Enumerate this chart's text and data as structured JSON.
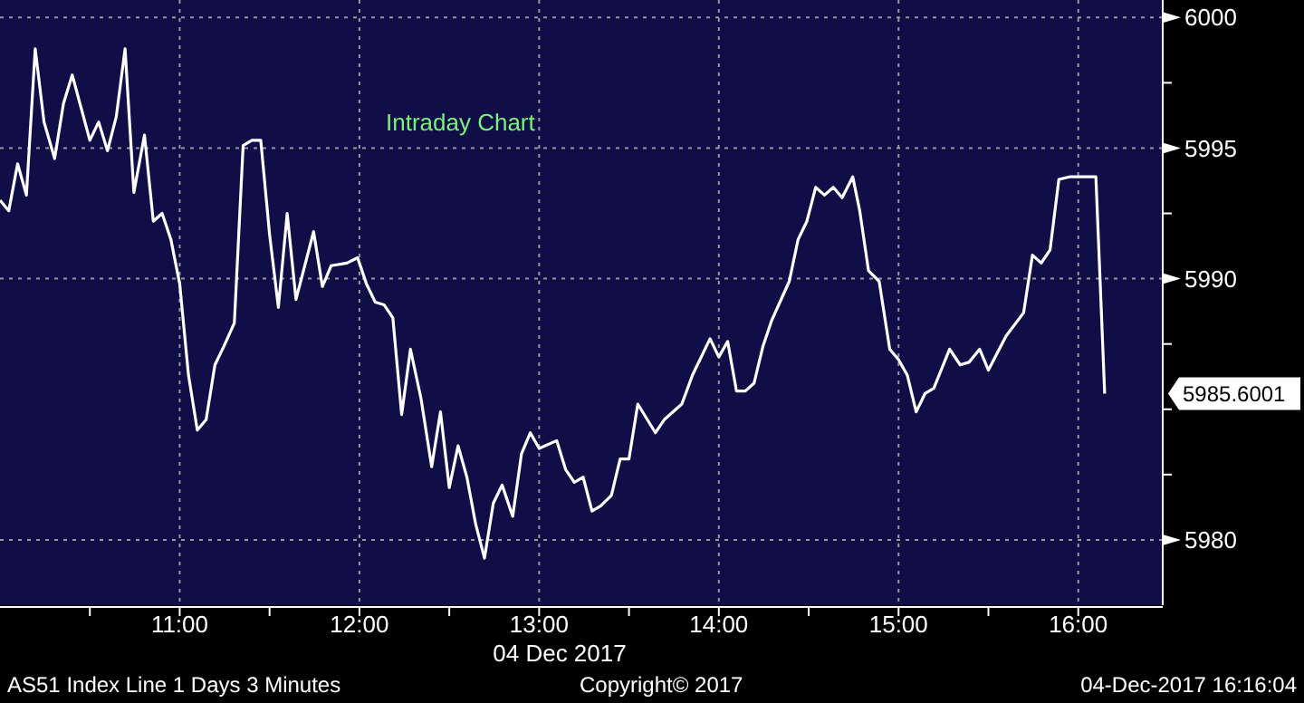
{
  "chart_data": {
    "type": "line",
    "title": "Intraday Chart",
    "xlabel": "04 Dec 2017",
    "x": [
      10.0,
      10.049,
      10.098,
      10.147,
      10.196,
      10.245,
      10.304,
      10.353,
      10.402,
      10.5,
      10.549,
      10.598,
      10.647,
      10.696,
      10.745,
      10.804,
      10.853,
      10.902,
      10.951,
      11.0,
      11.049,
      11.098,
      11.147,
      11.196,
      11.245,
      11.304,
      11.353,
      11.402,
      11.451,
      11.5,
      11.549,
      11.598,
      11.647,
      11.745,
      11.794,
      11.843,
      11.931,
      11.99,
      12.039,
      12.088,
      12.137,
      12.186,
      12.235,
      12.284,
      12.343,
      12.402,
      12.451,
      12.5,
      12.549,
      12.598,
      12.647,
      12.696,
      12.745,
      12.794,
      12.853,
      12.902,
      12.951,
      13.0,
      13.098,
      13.147,
      13.196,
      13.245,
      13.294,
      13.343,
      13.402,
      13.451,
      13.5,
      13.549,
      13.647,
      13.696,
      13.794,
      13.853,
      13.951,
      14.0,
      14.049,
      14.098,
      14.147,
      14.196,
      14.245,
      14.294,
      14.392,
      14.441,
      14.49,
      14.539,
      14.588,
      14.637,
      14.686,
      14.745,
      14.784,
      14.833,
      14.892,
      14.951,
      15.0,
      15.049,
      15.098,
      15.147,
      15.196,
      15.284,
      15.343,
      15.392,
      15.451,
      15.5,
      15.598,
      15.696,
      15.745,
      15.794,
      15.843,
      15.892,
      15.951,
      16.098,
      16.147
    ],
    "series": [
      {
        "color": "#ffffff",
        "values": [
          5993.0,
          5992.6,
          5994.4,
          5993.2,
          5998.8,
          5996.0,
          5994.6,
          5996.7,
          5997.8,
          5995.3,
          5996.0,
          5994.9,
          5996.2,
          5998.8,
          5993.3,
          5995.5,
          5992.2,
          5992.5,
          5991.5,
          5989.8,
          5986.3,
          5984.2,
          5984.6,
          5986.7,
          5987.4,
          5988.3,
          5995.1,
          5995.3,
          5995.3,
          5991.7,
          5988.9,
          5992.5,
          5989.2,
          5991.8,
          5989.7,
          5990.5,
          5990.6,
          5990.8,
          5989.8,
          5989.1,
          5989.0,
          5988.5,
          5984.8,
          5987.3,
          5985.4,
          5982.8,
          5984.9,
          5982.0,
          5983.6,
          5982.4,
          5980.6,
          5979.3,
          5981.4,
          5982.1,
          5980.9,
          5983.3,
          5984.1,
          5983.5,
          5983.8,
          5982.7,
          5982.2,
          5982.4,
          5981.1,
          5981.3,
          5981.7,
          5983.1,
          5983.1,
          5985.2,
          5984.1,
          5984.6,
          5985.2,
          5986.3,
          5987.7,
          5987.0,
          5987.6,
          5985.7,
          5985.7,
          5986.0,
          5987.4,
          5988.4,
          5989.9,
          5991.5,
          5992.2,
          5993.5,
          5993.2,
          5993.5,
          5993.1,
          5993.9,
          5992.6,
          5990.3,
          5989.9,
          5987.3,
          5986.9,
          5986.3,
          5984.9,
          5985.6,
          5985.8,
          5987.3,
          5986.7,
          5986.8,
          5987.3,
          5986.5,
          5987.8,
          5988.7,
          5990.9,
          5990.6,
          5991.1,
          5993.8,
          5993.9,
          5993.9,
          5985.6001
        ]
      }
    ],
    "xlim": [
      10.0,
      16.47
    ],
    "ylim": [
      5977.5,
      6000.67
    ],
    "xticks": [
      {
        "value": 10.5,
        "label": null
      },
      {
        "value": 11,
        "label": "11:00"
      },
      {
        "value": 11.5,
        "label": null
      },
      {
        "value": 12,
        "label": "12:00"
      },
      {
        "value": 12.5,
        "label": null
      },
      {
        "value": 13,
        "label": "13:00"
      },
      {
        "value": 13.5,
        "label": null
      },
      {
        "value": 14,
        "label": "14:00"
      },
      {
        "value": 14.5,
        "label": null
      },
      {
        "value": 15,
        "label": "15:00"
      },
      {
        "value": 15.5,
        "label": null
      },
      {
        "value": 16,
        "label": "16:00"
      }
    ],
    "yticks": [
      5980,
      {
        "value": 5982.5,
        "label": null
      },
      {
        "value": 5985,
        "label": null
      },
      {
        "value": 5987.5,
        "label": null
      },
      5990,
      {
        "value": 5992.5,
        "label": null
      },
      5995,
      {
        "value": 5997.5,
        "label": null
      },
      6000
    ],
    "grid": true,
    "marker": "none",
    "line_style": "solid",
    "annotations": [
      "5985.6001",
      "AS51 Index Line 1 Days 3 Minutes",
      "Copyright© 2017",
      "04-Dec-2017 16:16:04"
    ]
  }
}
